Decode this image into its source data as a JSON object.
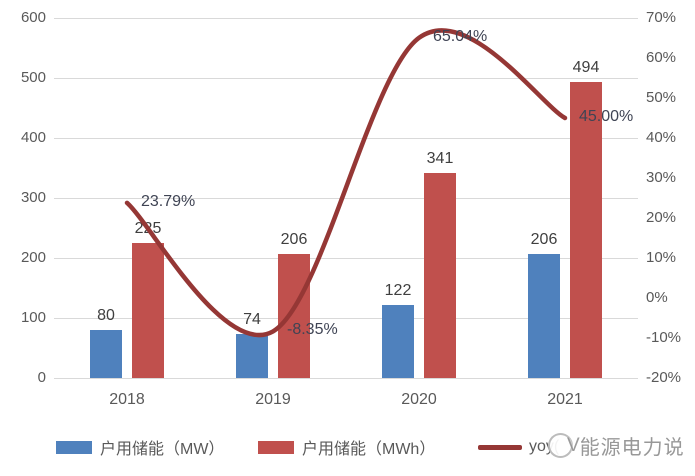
{
  "chart_data": {
    "type": "combo_bar_line",
    "categories": [
      "2018",
      "2019",
      "2020",
      "2021"
    ],
    "series": [
      {
        "name": "户用储能（MW）",
        "type": "bar",
        "color": "#4f81bd",
        "values": [
          80,
          74,
          122,
          206
        ],
        "labels": [
          "80",
          "74",
          "122",
          "206"
        ]
      },
      {
        "name": "户用储能（MWh）",
        "type": "bar",
        "color": "#c0504d",
        "values": [
          225,
          206,
          341,
          494
        ],
        "labels": [
          "225",
          "206",
          "341",
          "494"
        ]
      },
      {
        "name": "yoy(",
        "type": "line",
        "axis": "right",
        "color": "#953735",
        "values": [
          23.79,
          -8.35,
          65.04,
          45.0
        ],
        "labels": [
          "23.79%",
          "-8.35%",
          "65.04%",
          "45.00%"
        ],
        "smooth": true
      }
    ],
    "left_axis": {
      "min": 0,
      "max": 600,
      "step": 100,
      "ticks": [
        "600",
        "500",
        "400",
        "300",
        "200",
        "100",
        "0"
      ]
    },
    "right_axis": {
      "min": -20,
      "max": 70,
      "step": 10,
      "ticks": [
        "70%",
        "60%",
        "50%",
        "40%",
        "30%",
        "20%",
        "10%",
        "0%",
        "-10%",
        "-20%"
      ]
    },
    "grid": true,
    "legend_position": "bottom",
    "gridline_color": "#d9d9d9"
  },
  "watermark": {
    "logo_mark": "V",
    "text": "能源电力说"
  }
}
